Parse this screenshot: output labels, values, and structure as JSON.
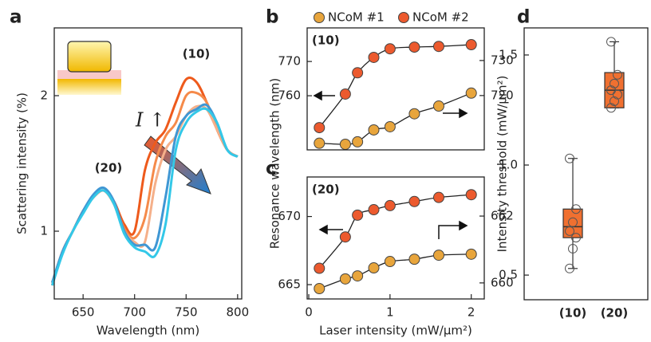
{
  "chart_data": [
    {
      "panel": "a",
      "type": "line",
      "ylabel": "Scattering intensity (%)",
      "xlabel": "Wavelength (nm)",
      "annotations": [
        "(10)",
        "(20)",
        "I ↑"
      ],
      "x": [
        620,
        630,
        640,
        650,
        660,
        670,
        680,
        690,
        700,
        710,
        720,
        730,
        740,
        750,
        760,
        770,
        780,
        790,
        800
      ],
      "xlim": [
        622,
        804
      ],
      "ylim": [
        0.5,
        2.5
      ],
      "xticks": [
        650,
        700,
        750,
        800
      ],
      "yticks": [
        1,
        2
      ],
      "series": [
        {
          "color": "#ee5a1c",
          "values": [
            0.6,
            0.85,
            1.0,
            1.15,
            1.25,
            1.3,
            1.22,
            1.05,
            1.0,
            1.45,
            1.65,
            1.75,
            1.95,
            2.12,
            2.1,
            1.95,
            1.75,
            1.6,
            1.55
          ]
        },
        {
          "color": "#f58a4a",
          "values": [
            0.62,
            0.85,
            1.0,
            1.15,
            1.25,
            1.3,
            1.2,
            1.02,
            0.95,
            1.1,
            1.5,
            1.7,
            1.8,
            2.0,
            2.02,
            1.95,
            1.75,
            1.6,
            1.55
          ]
        },
        {
          "color": "#f5b08a",
          "values": [
            0.62,
            0.85,
            1.0,
            1.15,
            1.25,
            1.3,
            1.2,
            1.0,
            0.92,
            0.92,
            1.35,
            1.6,
            1.7,
            1.85,
            1.92,
            1.9,
            1.75,
            1.6,
            1.55
          ]
        },
        {
          "color": "#3f97d4",
          "values": [
            0.62,
            0.85,
            1.0,
            1.15,
            1.27,
            1.32,
            1.22,
            1.0,
            0.9,
            0.9,
            0.88,
            1.25,
            1.7,
            1.85,
            1.9,
            1.93,
            1.8,
            1.6,
            1.55
          ]
        },
        {
          "color": "#33c8e8",
          "values": [
            0.6,
            0.83,
            1.0,
            1.13,
            1.25,
            1.3,
            1.2,
            0.98,
            0.88,
            0.85,
            0.82,
            1.05,
            1.6,
            1.8,
            1.88,
            1.9,
            1.8,
            1.6,
            1.55
          ]
        }
      ]
    },
    {
      "panel": "b",
      "type": "scatter",
      "ylabel": "Resonance wavelength (nm)",
      "annotation": "(10)",
      "xlim": [
        -0.02,
        2.16
      ],
      "ylim": [
        744.2,
        779.8
      ],
      "yticks": [
        760,
        770
      ],
      "y2lim": [
        704.5,
        739.3
      ],
      "y2ticks": [
        720,
        730
      ],
      "series": [
        {
          "name": "NCoM #1",
          "color": "#e8a53c",
          "axis": "y2",
          "x": [
            0.13,
            0.45,
            0.6,
            0.8,
            1.0,
            1.3,
            1.6,
            2.0
          ],
          "values": [
            706.4,
            706.1,
            706.8,
            710.2,
            711.1,
            714.8,
            717.0,
            720.7
          ]
        },
        {
          "name": "NCoM #2",
          "color": "#ec5a2e",
          "x": [
            0.13,
            0.45,
            0.6,
            0.8,
            1.0,
            1.3,
            1.6,
            2.0
          ],
          "values": [
            750.7,
            760.5,
            766.7,
            771.2,
            773.7,
            774.2,
            774.4,
            774.9
          ]
        }
      ]
    },
    {
      "panel": "c",
      "type": "scatter",
      "xlabel": "Laser intensity (mW/μm²)",
      "annotation": "(20)",
      "xlim": [
        -0.02,
        2.16
      ],
      "xticks": [
        0,
        1,
        2
      ],
      "ylim": [
        663.95,
        672.9
      ],
      "yticks": [
        665,
        670
      ],
      "y2lim": [
        659.52,
        663.17
      ],
      "y2ticks": [
        660,
        662
      ],
      "series": [
        {
          "color": "#e8a53c",
          "axis": "y2",
          "x": [
            0.13,
            0.45,
            0.6,
            0.8,
            1.0,
            1.3,
            1.6,
            2.0
          ],
          "values": [
            659.83,
            660.12,
            660.21,
            660.45,
            660.64,
            660.71,
            660.83,
            660.86
          ]
        },
        {
          "color": "#ec5a2e",
          "x": [
            0.13,
            0.45,
            0.6,
            0.8,
            1.0,
            1.3,
            1.6,
            2.0
          ],
          "values": [
            666.2,
            668.5,
            670.1,
            670.5,
            670.8,
            671.1,
            671.4,
            671.6
          ]
        }
      ]
    },
    {
      "panel": "d",
      "type": "box",
      "ylabel": "Intensity threshold (mW/μm²)",
      "color": "#f07030",
      "categories": [
        "(10)",
        "(20)"
      ],
      "ylim": [
        0.388,
        1.623
      ],
      "yticks": [
        0.5,
        {
          "value": 1,
          "label": "1.0"
        },
        1.5
      ],
      "boxes": [
        {
          "min": 0.53,
          "q1": 0.67,
          "median": 0.72,
          "q3": 0.8,
          "max": 1.03,
          "points": [
            0.53,
            0.62,
            0.67,
            0.7,
            0.74,
            0.8,
            1.03
          ]
        },
        {
          "min": 1.26,
          "q1": 1.26,
          "median": 1.34,
          "q3": 1.42,
          "max": 1.56,
          "points": [
            1.26,
            1.29,
            1.32,
            1.34,
            1.37,
            1.41,
            1.56
          ]
        }
      ]
    }
  ]
}
